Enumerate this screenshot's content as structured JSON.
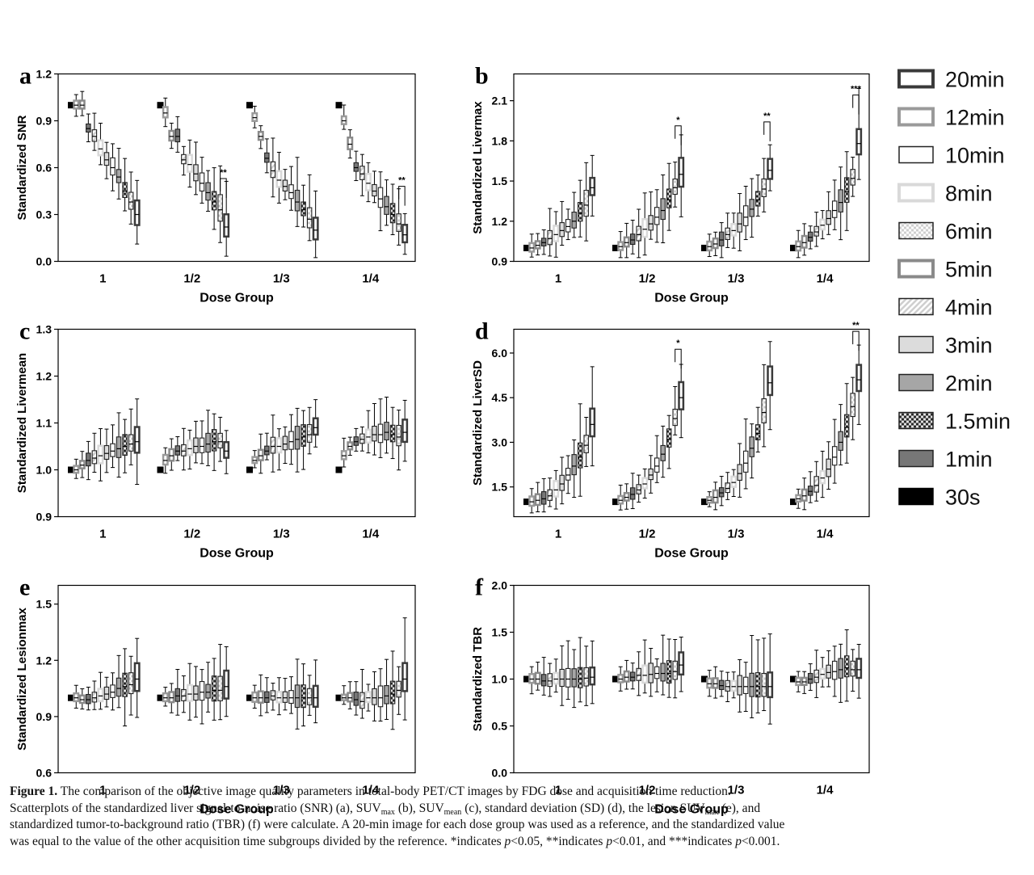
{
  "figure": {
    "legend": [
      {
        "label": "20min",
        "style": "hollow",
        "color": "#3a3a3a",
        "stroke": "#3a3a3a"
      },
      {
        "label": "12min",
        "style": "hollow",
        "color": "#9a9a9a",
        "stroke": "#9a9a9a"
      },
      {
        "label": "10min",
        "style": "filled",
        "color": "#ffffff",
        "stroke": "#222222"
      },
      {
        "label": "8min",
        "style": "hollow",
        "color": "#d9d9d9",
        "stroke": "#d9d9d9"
      },
      {
        "label": "6min",
        "style": "checker-light",
        "color": "#eeeeee",
        "stroke": "#222222"
      },
      {
        "label": "5min",
        "style": "hollow",
        "color": "#8a8a8a",
        "stroke": "#8a8a8a"
      },
      {
        "label": "4min",
        "style": "stripes",
        "color": "#e6e6e6",
        "stroke": "#222222"
      },
      {
        "label": "3min",
        "style": "filled",
        "color": "#dcdcdc",
        "stroke": "#222222"
      },
      {
        "label": "2min",
        "style": "filled",
        "color": "#a6a6a6",
        "stroke": "#222222"
      },
      {
        "label": "1.5min",
        "style": "checker-dark",
        "color": "#555555",
        "stroke": "#222222"
      },
      {
        "label": "1min",
        "style": "filled",
        "color": "#777777",
        "stroke": "#222222"
      },
      {
        "label": "30s",
        "style": "filled",
        "color": "#000000",
        "stroke": "#000000"
      }
    ],
    "caption": {
      "label": "Figure 1.",
      "line1": " The comparison of the objective image quality parameters in total-body PET/CT images by FDG dose and acquisition time reduction.",
      "line2a": "Scatterplots of the standardized liver signal-to-noise ratio (SNR) (a), SUV",
      "sub1": "max",
      "line2b": " (b), SUV",
      "sub2": "mean",
      "line2c": " (c), standard deviation (SD) (d), the lesion SUV",
      "sub3": "max",
      "line2d": " (e), and",
      "line3": "standardized tumor-to-background ratio (TBR) (f) were calculate. A 20-min image for each dose group was used as a reference, and the standardized value",
      "line4a": "was equal to the value of the other acquisition time subgroups divided by the reference. *indicates ",
      "p1": "p",
      "line4b": "<0.05, **indicates ",
      "p2": "p",
      "line4c": "<0.01, and ***indicates ",
      "p3": "p",
      "line4d": "<0.001."
    }
  },
  "chart_data": [
    {
      "panel": "a",
      "type": "box",
      "ylabel": "Standardized SNR",
      "xlabel": "Dose Group",
      "categories": [
        "1",
        "1/2",
        "1/3",
        "1/4"
      ],
      "ylim": [
        0.0,
        1.2
      ],
      "yticks": [
        "0.0",
        "0.3",
        "0.6",
        "0.9",
        "1.2"
      ],
      "medians": [
        [
          1.0,
          1.0,
          1.0,
          0.85,
          0.8,
          0.72,
          0.65,
          0.6,
          0.54,
          0.45,
          0.38,
          0.3
        ],
        [
          1.0,
          0.95,
          0.8,
          0.8,
          0.65,
          0.62,
          0.56,
          0.5,
          0.44,
          0.38,
          0.33,
          0.22
        ],
        [
          1.0,
          0.92,
          0.8,
          0.66,
          0.58,
          0.52,
          0.48,
          0.44,
          0.38,
          0.33,
          0.27,
          0.2
        ],
        [
          1.0,
          0.9,
          0.75,
          0.6,
          0.56,
          0.5,
          0.45,
          0.4,
          0.35,
          0.3,
          0.24,
          0.17
        ]
      ],
      "significance": [
        {
          "group": "1/2",
          "text": "**"
        },
        {
          "group": "1/4",
          "text": "**"
        }
      ]
    },
    {
      "panel": "b",
      "type": "box",
      "ylabel": "Standardized Livermax",
      "xlabel": "Dose Group",
      "categories": [
        "1",
        "1/2",
        "1/3",
        "1/4"
      ],
      "ylim": [
        0.9,
        2.3
      ],
      "yticks": [
        "0.9",
        "1.2",
        "1.5",
        "1.8",
        "2.1"
      ],
      "medians": [
        [
          1.0,
          1.0,
          1.02,
          1.04,
          1.07,
          1.1,
          1.13,
          1.16,
          1.2,
          1.26,
          1.32,
          1.45
        ],
        [
          1.0,
          1.01,
          1.04,
          1.06,
          1.1,
          1.14,
          1.18,
          1.23,
          1.28,
          1.36,
          1.45,
          1.55
        ],
        [
          1.0,
          1.01,
          1.03,
          1.06,
          1.1,
          1.13,
          1.18,
          1.23,
          1.29,
          1.36,
          1.44,
          1.58
        ],
        [
          1.0,
          1.01,
          1.04,
          1.08,
          1.12,
          1.17,
          1.22,
          1.28,
          1.34,
          1.42,
          1.52,
          1.78
        ]
      ],
      "significance": [
        {
          "group": "1/2",
          "text": "*"
        },
        {
          "group": "1/3",
          "text": "**"
        },
        {
          "group": "1/4",
          "text": "***"
        }
      ]
    },
    {
      "panel": "c",
      "type": "box",
      "ylabel": "Standardized Livermean",
      "xlabel": "Dose Group",
      "categories": [
        "1",
        "1/2",
        "1/3",
        "1/4"
      ],
      "ylim": [
        0.9,
        1.3
      ],
      "yticks": [
        "0.9",
        "1.0",
        "1.1",
        "1.2",
        "1.3"
      ],
      "medians": [
        [
          1.0,
          1.0,
          1.01,
          1.02,
          1.025,
          1.03,
          1.035,
          1.04,
          1.045,
          1.05,
          1.055,
          1.06
        ],
        [
          1.0,
          1.02,
          1.03,
          1.04,
          1.04,
          1.045,
          1.05,
          1.05,
          1.055,
          1.06,
          1.06,
          1.04
        ],
        [
          1.0,
          1.02,
          1.03,
          1.04,
          1.05,
          1.05,
          1.055,
          1.06,
          1.065,
          1.07,
          1.075,
          1.09
        ],
        [
          1.0,
          1.03,
          1.05,
          1.06,
          1.065,
          1.07,
          1.075,
          1.075,
          1.08,
          1.075,
          1.07,
          1.08
        ]
      ],
      "significance": []
    },
    {
      "panel": "d",
      "type": "box",
      "ylabel": "Standardized LiverSD",
      "xlabel": "Dose Group",
      "categories": [
        "1",
        "1/2",
        "1/3",
        "1/4"
      ],
      "ylim": [
        0.5,
        6.8
      ],
      "yticks": [
        "1.5",
        "3.0",
        "4.5",
        "6.0"
      ],
      "medians": [
        [
          1.0,
          1.0,
          1.05,
          1.1,
          1.2,
          1.4,
          1.6,
          1.9,
          2.2,
          2.5,
          2.9,
          3.6
        ],
        [
          1.0,
          1.05,
          1.15,
          1.25,
          1.4,
          1.6,
          1.9,
          2.2,
          2.6,
          3.1,
          3.8,
          4.5
        ],
        [
          1.0,
          1.05,
          1.15,
          1.3,
          1.45,
          1.65,
          1.95,
          2.3,
          2.8,
          3.3,
          4.0,
          5.0
        ],
        [
          1.0,
          1.1,
          1.2,
          1.35,
          1.55,
          1.8,
          2.1,
          2.5,
          3.0,
          3.5,
          4.2,
          5.1
        ]
      ],
      "significance": [
        {
          "group": "1/2",
          "text": "*"
        },
        {
          "group": "1/4",
          "text": "**"
        }
      ]
    },
    {
      "panel": "e",
      "type": "box",
      "ylabel": "Standardized Lesionmax",
      "xlabel": "Dose Group",
      "categories": [
        "1",
        "1/2",
        "1/3",
        "1/4"
      ],
      "ylim": [
        0.6,
        1.6
      ],
      "yticks": [
        "0.6",
        "0.9",
        "1.2",
        "1.5"
      ],
      "medians": [
        [
          1.0,
          1.0,
          0.99,
          0.99,
          1.0,
          1.01,
          1.02,
          1.03,
          1.05,
          1.06,
          1.07,
          1.1
        ],
        [
          1.0,
          1.0,
          1.0,
          1.01,
          1.01,
          1.02,
          1.02,
          1.03,
          1.03,
          1.04,
          1.04,
          1.06
        ],
        [
          1.0,
          1.0,
          1.0,
          1.0,
          1.01,
          1.0,
          1.0,
          1.0,
          1.0,
          1.0,
          1.0,
          1.0
        ],
        [
          1.0,
          1.0,
          1.0,
          0.99,
          0.98,
          1.0,
          1.0,
          1.0,
          1.01,
          1.02,
          1.04,
          1.1
        ]
      ],
      "significance": []
    },
    {
      "panel": "f",
      "type": "box",
      "ylabel": "Standardized TBR",
      "xlabel": "Dose Group",
      "categories": [
        "1",
        "1/2",
        "1/3",
        "1/4"
      ],
      "ylim": [
        0.0,
        2.0
      ],
      "yticks": [
        "0.0",
        "0.5",
        "1.0",
        "1.5",
        "2.0"
      ],
      "medians": [
        [
          1.0,
          1.0,
          1.0,
          0.98,
          0.98,
          1.0,
          1.0,
          1.0,
          1.0,
          1.0,
          1.01,
          1.02
        ],
        [
          1.0,
          1.0,
          1.02,
          1.02,
          1.04,
          1.04,
          1.05,
          1.06,
          1.06,
          1.06,
          1.08,
          1.15
        ],
        [
          1.0,
          0.95,
          0.95,
          0.93,
          0.92,
          0.92,
          0.92,
          0.92,
          0.92,
          0.92,
          0.92,
          0.92
        ],
        [
          1.0,
          0.97,
          0.97,
          1.0,
          1.02,
          1.05,
          1.07,
          1.08,
          1.1,
          1.12,
          1.1,
          1.1
        ]
      ],
      "significance": []
    }
  ]
}
